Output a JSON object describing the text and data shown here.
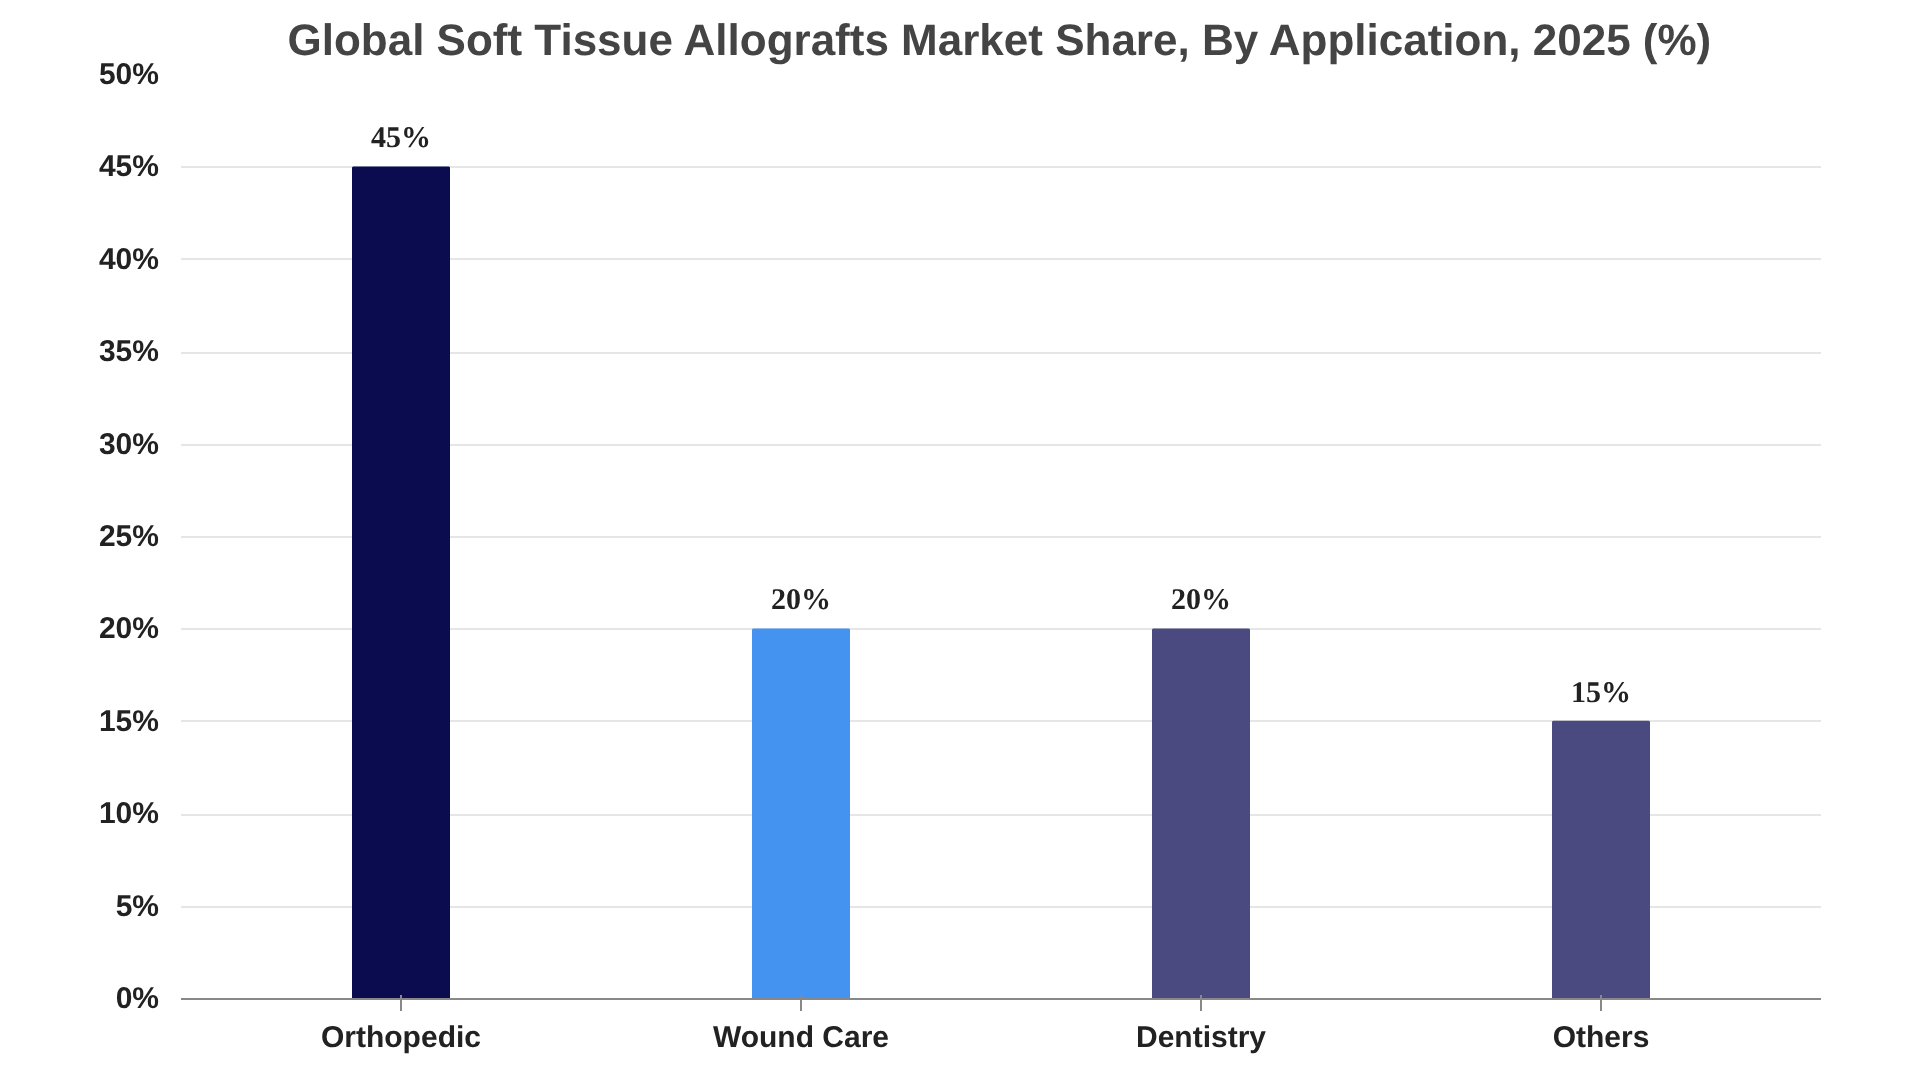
{
  "chart_data": {
    "type": "bar",
    "title": "Global Soft Tissue Allografts Market Share, By Application, 2025 (%)",
    "categories": [
      "Orthopedic",
      "Wound Care",
      "Dentistry",
      "Others"
    ],
    "values": [
      45,
      20,
      20,
      15
    ],
    "colors": [
      "#0b0b50",
      "#4493f0",
      "#4a4a80",
      "#4a4a80"
    ],
    "value_labels": [
      "45%",
      "20%",
      "20%",
      "15%"
    ],
    "ylim": [
      0,
      50
    ],
    "yticks": [
      {
        "value": 0,
        "label": "0%"
      },
      {
        "value": 5,
        "label": "5%"
      },
      {
        "value": 10,
        "label": "10%"
      },
      {
        "value": 15,
        "label": "15%"
      },
      {
        "value": 20,
        "label": "20%"
      },
      {
        "value": 25,
        "label": "25%"
      },
      {
        "value": 30,
        "label": "30%"
      },
      {
        "value": 35,
        "label": "35%"
      },
      {
        "value": 40,
        "label": "40%"
      },
      {
        "value": 45,
        "label": "45%"
      },
      {
        "value": 50,
        "label": "50%"
      }
    ],
    "grid": "y"
  }
}
